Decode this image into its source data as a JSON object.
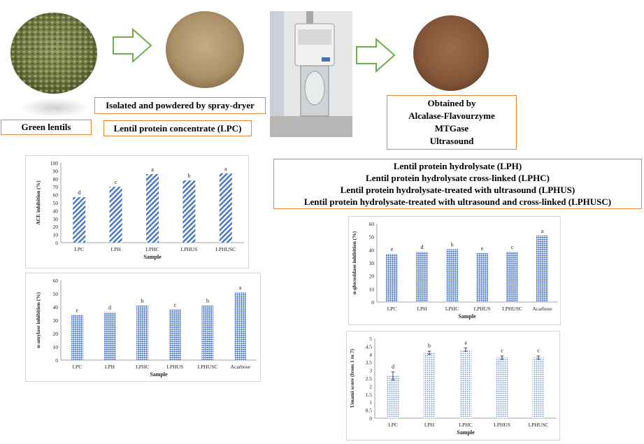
{
  "labels": {
    "green_lentils": "Green lentils",
    "isolated": "Isolated and powdered by spray-dryer",
    "lpc": "Lentil protein concentrate (LPC)",
    "obtained": [
      "Obtained by",
      "Alcalase-Flavourzyme",
      "MTGase",
      "Ultrasound"
    ],
    "products": [
      "Lentil protein hydrolysate (LPH)",
      "Lentil protein hydrolysate cross-linked (LPHC)",
      "Lentil protein hydrolysate-treated with ultrasound (LPHUS)",
      "Lentil protein hydrolysate-treated with ultrasound and cross-linked (LPHUSC)"
    ]
  },
  "colors": {
    "box_border": "#e8833a",
    "arrow_border": "#70ad47",
    "bar": "#4472c4",
    "lentil_bg": "#6b7a45",
    "powder_light": "#b39a72",
    "powder_dark": "#8a5a3c"
  },
  "chart_data": [
    {
      "id": "ace",
      "type": "bar",
      "categories": [
        "LPC",
        "LPH",
        "LPHC",
        "LPHUS",
        "LPHUSC"
      ],
      "values": [
        57,
        70,
        86,
        78,
        87
      ],
      "letters": [
        "d",
        "c",
        "a",
        "b",
        "a"
      ],
      "ylabel": "ACE inhibition (%)",
      "xlabel": "Sample",
      "ylim": [
        0,
        100
      ],
      "yticks": [
        0,
        10,
        20,
        30,
        40,
        50,
        60,
        70,
        80,
        90,
        100
      ],
      "pattern": "diagonal"
    },
    {
      "id": "amylase",
      "type": "bar",
      "categories": [
        "LPC",
        "LPH",
        "LPHC",
        "LPHUS",
        "LPHUSC",
        "Acarbose"
      ],
      "values": [
        34,
        36,
        41,
        38,
        41,
        51
      ],
      "letters": [
        "e",
        "d",
        "b",
        "c",
        "b",
        "a"
      ],
      "ylabel": "α-amylase inhibition (%)",
      "xlabel": "Sample",
      "ylim": [
        0,
        60
      ],
      "yticks": [
        0,
        10,
        20,
        30,
        40,
        50,
        60
      ],
      "pattern": "checker"
    },
    {
      "id": "glucosidase",
      "type": "bar",
      "categories": [
        "LPC",
        "LPH",
        "LPHC",
        "LPHUS",
        "LPHUSC",
        "Acarbose"
      ],
      "values": [
        37,
        38.5,
        40.5,
        37.5,
        38.5,
        51
      ],
      "letters": [
        "e",
        "d",
        "b",
        "e",
        "c",
        "a"
      ],
      "ylabel": "α-glucosidase inhibition (%)",
      "xlabel": "Sample",
      "ylim": [
        0,
        60
      ],
      "yticks": [
        0,
        10,
        20,
        30,
        40,
        50,
        60
      ],
      "pattern": "checker"
    },
    {
      "id": "umami",
      "type": "bar",
      "categories": [
        "LPC",
        "LPH",
        "LPHC",
        "LPHUS",
        "LPHUSC"
      ],
      "values": [
        2.65,
        4.1,
        4.3,
        3.8,
        3.8
      ],
      "errors": [
        0.25,
        0.1,
        0.1,
        0.1,
        0.1
      ],
      "letters": [
        "d",
        "b",
        "a",
        "c",
        "c"
      ],
      "ylabel": "Umami score (from 1 to 7)",
      "xlabel": "Sample",
      "ylim": [
        0,
        5
      ],
      "yticks": [
        0,
        0.5,
        1,
        1.5,
        2,
        2.5,
        3,
        3.5,
        4,
        4.5,
        5
      ],
      "pattern": "dots"
    }
  ]
}
